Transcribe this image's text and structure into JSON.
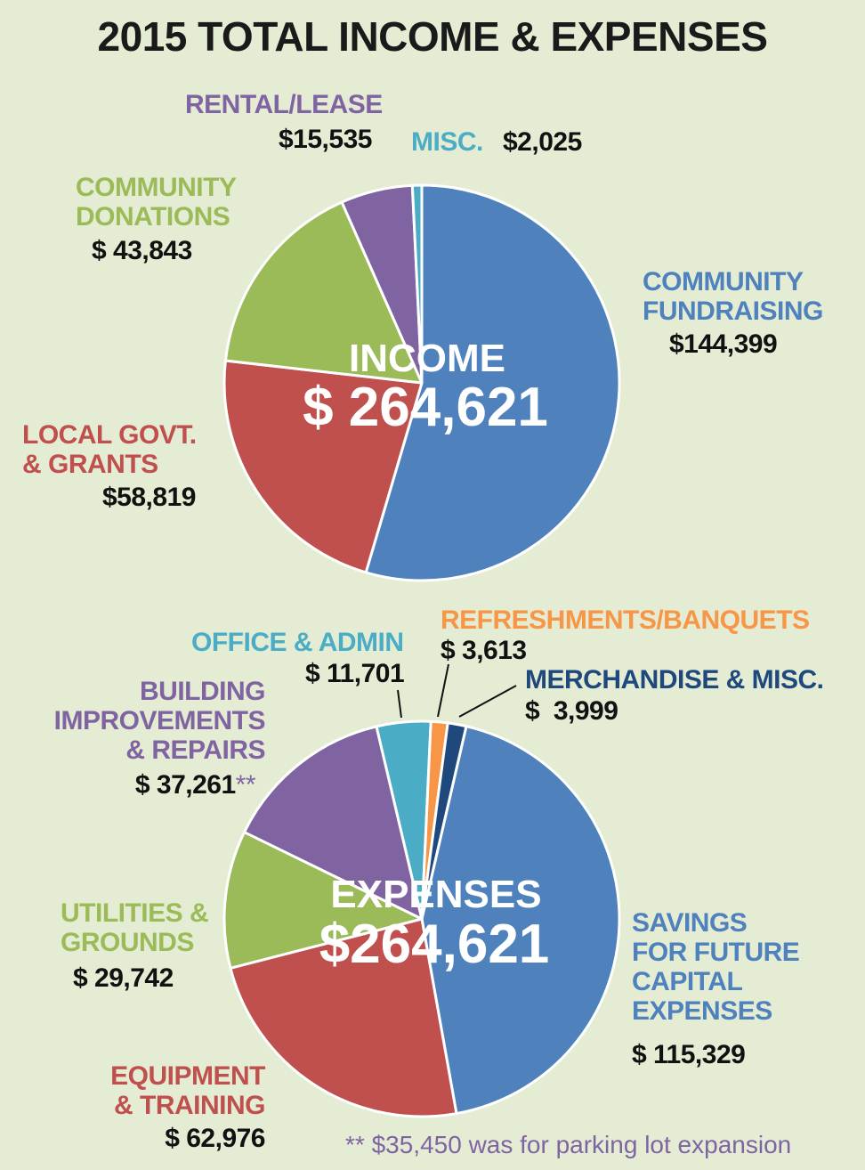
{
  "title": "2015 TOTAL INCOME & EXPENSES",
  "chart_data": [
    {
      "type": "pie",
      "center_label": "INCOME",
      "total": {
        "value": 264621,
        "label": "$ 264,621"
      },
      "categories": [
        "COMMUNITY\nFUNDRAISING",
        "LOCAL GOVT.\n& GRANTS",
        "COMMUNITY\nDONATIONS",
        "RENTAL/LEASE",
        "MISC."
      ],
      "values": [
        144399,
        58819,
        43843,
        15535,
        2025
      ],
      "value_labels": [
        "$144,399",
        "$58,819",
        "$ 43,843",
        "$15,535",
        "$2,025"
      ],
      "colors": [
        "#4f81bd",
        "#c0504d",
        "#9bbb59",
        "#8064a2",
        "#4bacc6"
      ]
    },
    {
      "type": "pie",
      "center_label": "EXPENSES",
      "total": {
        "value": 264621,
        "label": "$264,621"
      },
      "categories": [
        "SAVINGS\nFOR FUTURE\nCAPITAL\nEXPENSES",
        "EQUIPMENT\n& TRAINING",
        "UTILITIES &\nGROUNDS",
        "BUILDING\nIMPROVEMENTS\n& REPAIRS",
        "OFFICE & ADMIN",
        "REFRESHMENTS/BANQUETS",
        "MERCHANDISE & MISC."
      ],
      "values": [
        115329,
        62976,
        29742,
        37261,
        11701,
        3613,
        3999
      ],
      "value_labels": [
        "$ 115,329",
        "$ 62,976",
        "$ 29,742",
        "$ 37,261",
        "$ 11,701",
        "$ 3,613",
        "$  3,999"
      ],
      "note_marker": "**",
      "colors": [
        "#4f81bd",
        "#c0504d",
        "#9bbb59",
        "#8064a2",
        "#4bacc6",
        "#f79646",
        "#1f497d"
      ]
    }
  ],
  "footnote": "** $35,450 was for parking lot expansion"
}
